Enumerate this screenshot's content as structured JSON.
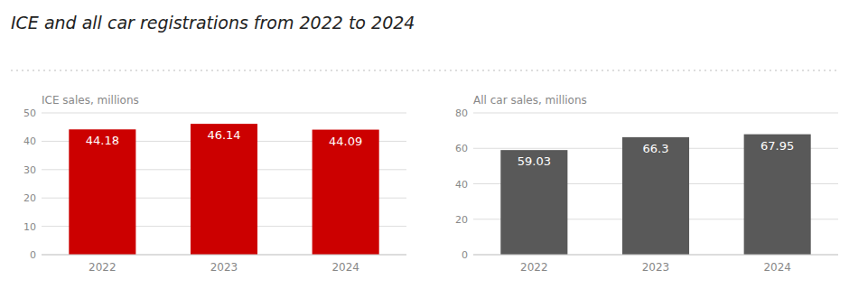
{
  "title": "ICE and all car registrations from 2022 to 2024",
  "chart_data": [
    {
      "type": "bar",
      "y_label": "ICE sales, millions",
      "categories": [
        "2022",
        "2023",
        "2024"
      ],
      "values": [
        44.18,
        46.14,
        44.09
      ],
      "color": "#cc0000",
      "ylim": [
        0,
        50
      ],
      "yticks": [
        0,
        10,
        20,
        30,
        40,
        50
      ],
      "grid": true,
      "data_labels": true
    },
    {
      "type": "bar",
      "y_label": "All car sales, millions",
      "categories": [
        "2022",
        "2023",
        "2024"
      ],
      "values": [
        59.03,
        66.3,
        67.95
      ],
      "color": "#595959",
      "ylim": [
        0,
        80
      ],
      "yticks": [
        0,
        20,
        40,
        60,
        80
      ],
      "grid": true,
      "data_labels": true
    }
  ]
}
